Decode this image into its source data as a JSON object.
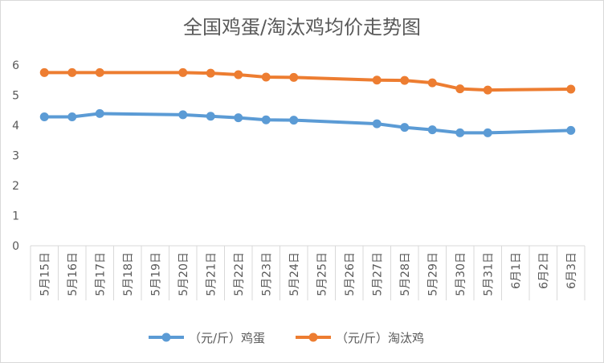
{
  "chart_data": {
    "type": "line",
    "title": "全国鸡蛋/淘汰鸡均价走势图",
    "xlabel": "",
    "ylabel": "",
    "ylim": [
      0,
      6
    ],
    "yticks": [
      "0",
      "1",
      "2",
      "3",
      "4",
      "5",
      "6"
    ],
    "grid": false,
    "legend_position": "bottom",
    "categories": [
      "5月15日",
      "5月16日",
      "5月17日",
      "5月18日",
      "5月19日",
      "5月20日",
      "5月21日",
      "5月22日",
      "5月23日",
      "5月24日",
      "5月25日",
      "5月26日",
      "5月27日",
      "5月28日",
      "5月29日",
      "5月30日",
      "5月31日",
      "6月1日",
      "6月2日",
      "6月3日"
    ],
    "series": [
      {
        "name": "（元/斤）鸡蛋",
        "color": "#5b9bd5",
        "values": [
          4.28,
          4.28,
          4.39,
          null,
          null,
          4.35,
          4.3,
          4.25,
          4.18,
          4.17,
          null,
          null,
          4.05,
          3.93,
          3.85,
          3.75,
          3.75,
          null,
          null,
          3.83
        ]
      },
      {
        "name": "（元/斤）淘汰鸡",
        "color": "#ed7d31",
        "values": [
          5.75,
          5.75,
          5.75,
          null,
          null,
          5.75,
          5.73,
          5.68,
          5.6,
          5.59,
          null,
          null,
          5.5,
          5.49,
          5.41,
          5.21,
          5.17,
          null,
          null,
          5.2
        ]
      }
    ]
  }
}
